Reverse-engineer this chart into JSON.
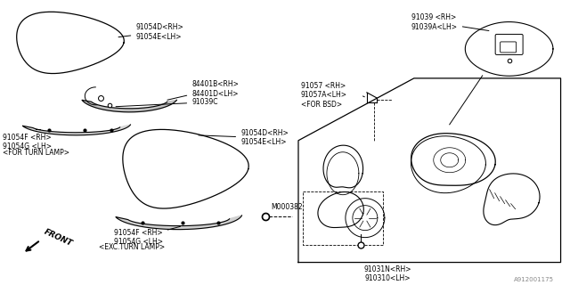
{
  "bg_color": "#ffffff",
  "part_number_ref": "A912001175",
  "lc": "#000000",
  "tc": "#000000",
  "fs": 5.5,
  "labels": {
    "top_cover": "91054D<RH>\n91054E<LH>",
    "turn_signal": "84401B<RH>\n84401D<LH>",
    "bracket": "91039C",
    "for_turn_left": "91054F <RH>\n91054G <LH>",
    "for_turn_lamp": "<FOR TURN LAMP>",
    "mid_cover": "91054D<RH>\n91054E<LH>",
    "bolt": "M000382",
    "exc_turn_left": "91054F <RH>\n91054G <LH>",
    "exc_turn_lamp": "<EXC.TURN LAMP>",
    "front": "FRONT",
    "bsd_mirror": "91039 <RH>\n91039A<LH>",
    "bsd_sensor": "91057 <RH>\n91057A<LH>\n<FOR BSD>",
    "assembly": "91031N<RH>\n910310<LH>"
  }
}
